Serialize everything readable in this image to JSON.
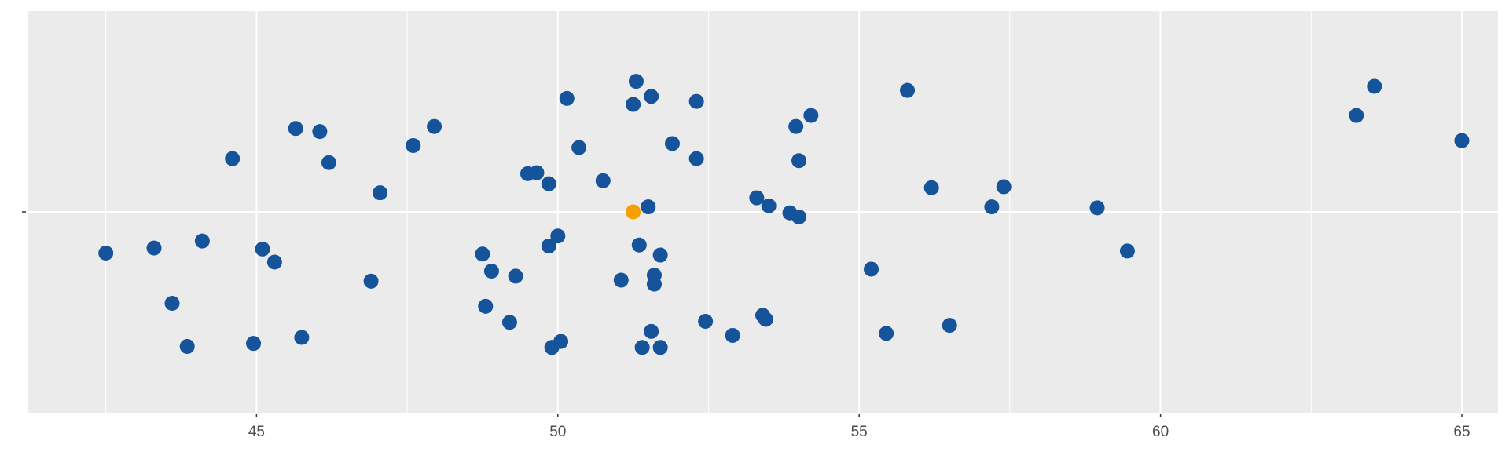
{
  "chart_data": {
    "type": "scatter",
    "xlim": [
      41.2,
      65.6
    ],
    "ylim": [
      -1.0,
      1.0
    ],
    "x_ticks": [
      "45",
      "50",
      "55",
      "60",
      "65"
    ],
    "x_tick_values": [
      45,
      50,
      55,
      60,
      65
    ],
    "y_tick_labels": [
      ""
    ],
    "grid": true,
    "colors": {
      "panel": "#ebebeb",
      "grid": "#ffffff",
      "points": "#15539a",
      "highlight": "#f5a000",
      "tick_text": "#4d4d4d"
    },
    "series": [
      {
        "role": "points",
        "points": [
          {
            "x": 42.5,
            "y": -0.205
          },
          {
            "x": 43.3,
            "y": -0.18
          },
          {
            "x": 43.6,
            "y": -0.455
          },
          {
            "x": 43.85,
            "y": -0.67
          },
          {
            "x": 44.1,
            "y": -0.145
          },
          {
            "x": 44.6,
            "y": 0.265
          },
          {
            "x": 44.95,
            "y": -0.655
          },
          {
            "x": 45.1,
            "y": -0.185
          },
          {
            "x": 45.3,
            "y": -0.25
          },
          {
            "x": 45.65,
            "y": 0.415
          },
          {
            "x": 45.75,
            "y": -0.625
          },
          {
            "x": 46.05,
            "y": 0.4
          },
          {
            "x": 46.2,
            "y": 0.245
          },
          {
            "x": 46.9,
            "y": -0.345
          },
          {
            "x": 47.05,
            "y": 0.095
          },
          {
            "x": 47.6,
            "y": 0.33
          },
          {
            "x": 47.95,
            "y": 0.425
          },
          {
            "x": 48.75,
            "y": -0.21
          },
          {
            "x": 48.8,
            "y": -0.47
          },
          {
            "x": 48.9,
            "y": -0.295
          },
          {
            "x": 49.2,
            "y": -0.55
          },
          {
            "x": 49.3,
            "y": -0.32
          },
          {
            "x": 49.5,
            "y": 0.19
          },
          {
            "x": 49.65,
            "y": 0.195
          },
          {
            "x": 49.85,
            "y": 0.14
          },
          {
            "x": 49.85,
            "y": -0.17
          },
          {
            "x": 49.9,
            "y": -0.675
          },
          {
            "x": 50.0,
            "y": -0.12
          },
          {
            "x": 50.05,
            "y": -0.645
          },
          {
            "x": 50.15,
            "y": 0.565
          },
          {
            "x": 50.35,
            "y": 0.32
          },
          {
            "x": 50.75,
            "y": 0.155
          },
          {
            "x": 51.05,
            "y": -0.34
          },
          {
            "x": 51.25,
            "y": 0.535
          },
          {
            "x": 51.3,
            "y": 0.65
          },
          {
            "x": 51.35,
            "y": -0.165
          },
          {
            "x": 51.4,
            "y": -0.675
          },
          {
            "x": 51.5,
            "y": 0.025
          },
          {
            "x": 51.55,
            "y": -0.595
          },
          {
            "x": 51.55,
            "y": 0.575
          },
          {
            "x": 51.6,
            "y": -0.315
          },
          {
            "x": 51.6,
            "y": -0.36
          },
          {
            "x": 51.7,
            "y": -0.215
          },
          {
            "x": 51.7,
            "y": -0.675
          },
          {
            "x": 51.9,
            "y": 0.34
          },
          {
            "x": 52.3,
            "y": 0.55
          },
          {
            "x": 52.3,
            "y": 0.265
          },
          {
            "x": 52.45,
            "y": -0.545
          },
          {
            "x": 52.9,
            "y": -0.615
          },
          {
            "x": 53.3,
            "y": 0.07
          },
          {
            "x": 53.4,
            "y": -0.515
          },
          {
            "x": 53.45,
            "y": -0.535
          },
          {
            "x": 53.5,
            "y": 0.03
          },
          {
            "x": 53.85,
            "y": -0.005
          },
          {
            "x": 53.95,
            "y": 0.425
          },
          {
            "x": 54.0,
            "y": 0.255
          },
          {
            "x": 54.0,
            "y": -0.025
          },
          {
            "x": 54.2,
            "y": 0.48
          },
          {
            "x": 55.2,
            "y": -0.285
          },
          {
            "x": 55.45,
            "y": -0.605
          },
          {
            "x": 55.8,
            "y": 0.605
          },
          {
            "x": 56.2,
            "y": 0.12
          },
          {
            "x": 56.5,
            "y": -0.565
          },
          {
            "x": 57.2,
            "y": 0.025
          },
          {
            "x": 57.4,
            "y": 0.125
          },
          {
            "x": 58.95,
            "y": 0.02
          },
          {
            "x": 59.45,
            "y": -0.195
          },
          {
            "x": 63.25,
            "y": 0.48
          },
          {
            "x": 63.55,
            "y": 0.625
          },
          {
            "x": 65.0,
            "y": 0.355
          }
        ]
      },
      {
        "role": "highlight",
        "points": [
          {
            "x": 51.25,
            "y": 0.0
          }
        ]
      }
    ]
  }
}
